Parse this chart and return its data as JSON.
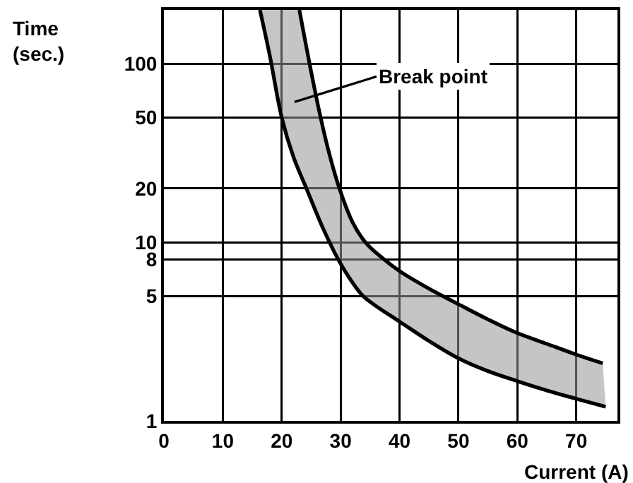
{
  "chart_data": {
    "type": "line",
    "xlabel": "Current (A)",
    "ylabel": "Time\n(sec.)",
    "xlim": [
      0,
      77
    ],
    "xticks": [
      0,
      10,
      20,
      30,
      40,
      50,
      60,
      70
    ],
    "ylim": [
      1,
      200
    ],
    "yticks": [
      1,
      5,
      8,
      10,
      20,
      50,
      100
    ],
    "log": "y",
    "grid": true,
    "marker": "none",
    "line_style": "solid",
    "series": [
      {
        "color": "#000000",
        "x": [
          16.3,
          18,
          20,
          22,
          24.2,
          27,
          29.6,
          31.5,
          33.8,
          36,
          40,
          45,
          50,
          55,
          60,
          65,
          70,
          75
        ],
        "values": [
          200,
          110,
          50,
          30,
          20,
          12,
          8,
          6.3,
          5,
          4.4,
          3.6,
          2.8,
          2.24,
          1.9,
          1.67,
          1.48,
          1.33,
          1.2
        ]
      },
      {
        "color": "#000000",
        "x": [
          23,
          25,
          26.6,
          28,
          29.8,
          32,
          34.2,
          37,
          40,
          45,
          50,
          55,
          60,
          65,
          70,
          74.5
        ],
        "values": [
          200,
          90,
          50,
          32,
          20,
          13,
          10,
          8.2,
          6.9,
          5.5,
          4.5,
          3.7,
          3.1,
          2.7,
          2.35,
          2.1
        ]
      }
    ],
    "annotations": [
      "Break point"
    ]
  }
}
